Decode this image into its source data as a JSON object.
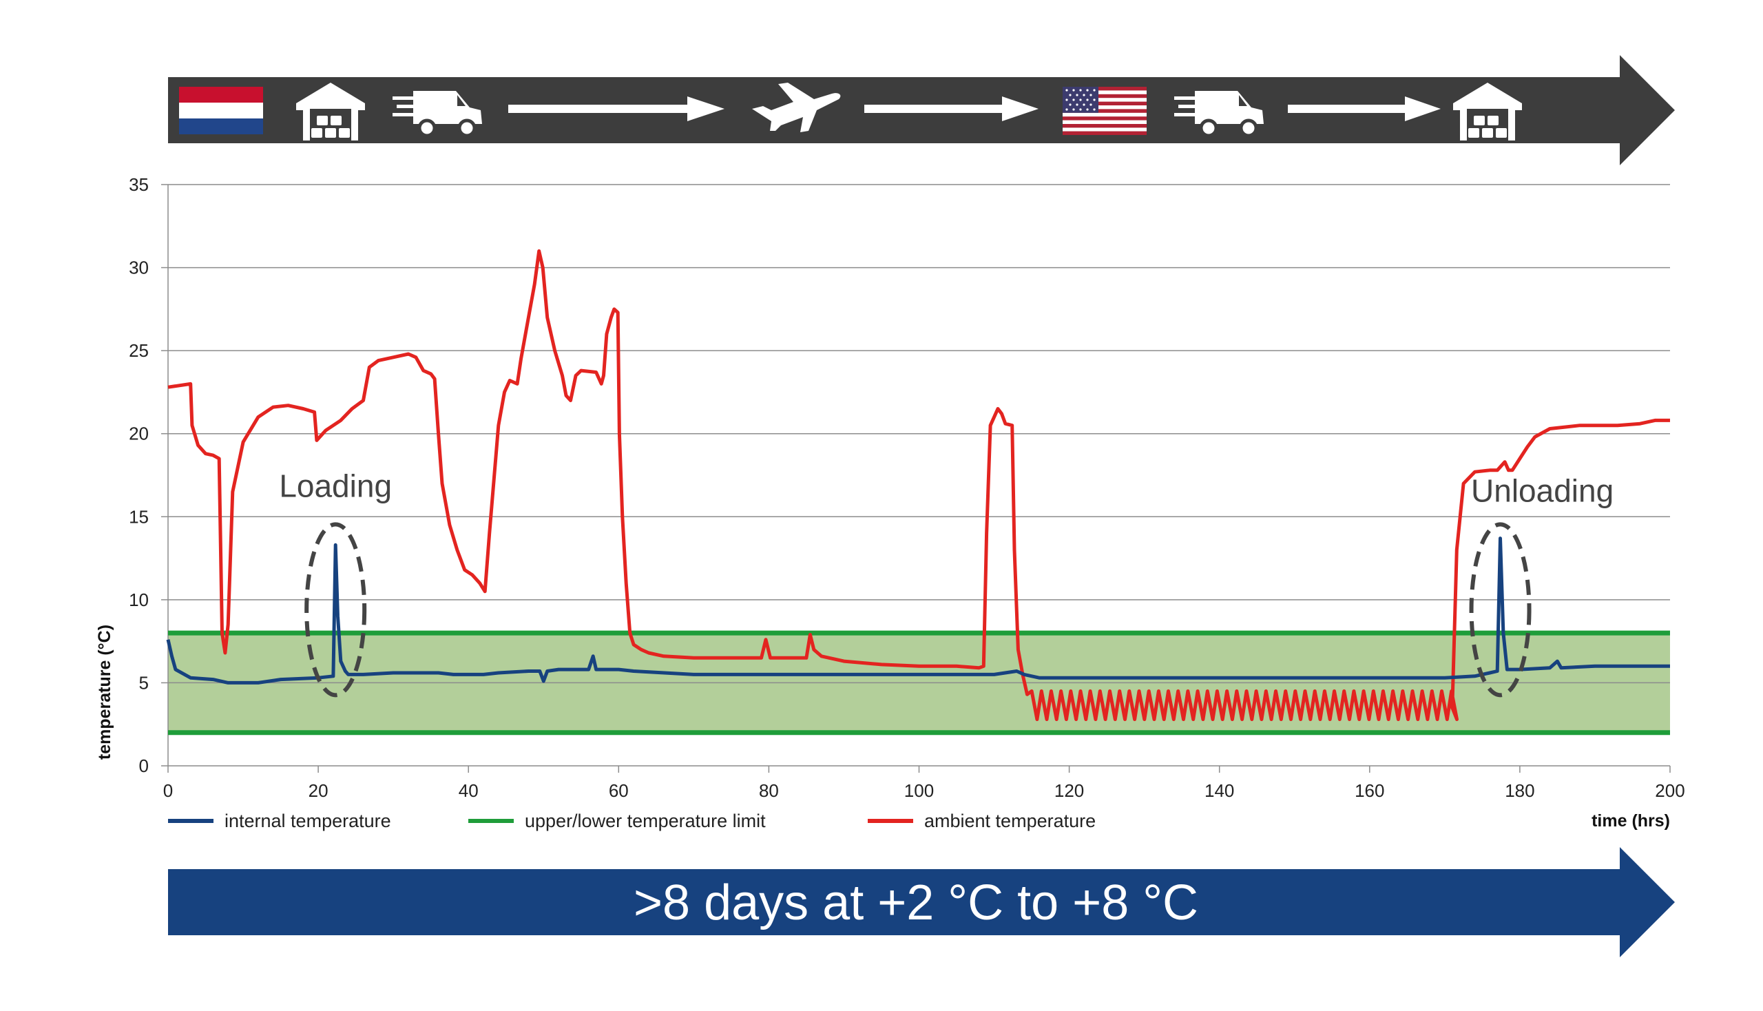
{
  "route": {
    "icons": [
      {
        "name": "netherlands-flag-icon"
      },
      {
        "name": "warehouse-icon"
      },
      {
        "name": "delivery-truck-icon"
      },
      {
        "name": "arrow-right-icon"
      },
      {
        "name": "airplane-icon"
      },
      {
        "name": "arrow-right-icon"
      },
      {
        "name": "usa-flag-icon"
      },
      {
        "name": "delivery-truck-icon"
      },
      {
        "name": "arrow-right-icon"
      },
      {
        "name": "warehouse-icon"
      }
    ],
    "colors": {
      "arrow": "#3d3d3d",
      "icon": "#ffffff"
    }
  },
  "banner": {
    "text": ">8 days at +2 °C to +8 °C",
    "color": "#17427f"
  },
  "annotations": {
    "loading": "Loading",
    "unloading": "Unloading"
  },
  "chart_data": {
    "type": "line",
    "xlabel": "time (hrs)",
    "ylabel": "temperature (°C)",
    "xlim": [
      0,
      200
    ],
    "ylim": [
      0,
      35
    ],
    "xticks": [
      0,
      20,
      40,
      60,
      80,
      100,
      120,
      140,
      160,
      180,
      200
    ],
    "yticks": [
      0,
      5,
      10,
      15,
      20,
      25,
      30,
      35
    ],
    "grid": "horizontal",
    "legend_position": "bottom",
    "band": {
      "lower": 2,
      "upper": 8,
      "fill": "#b3cf9a"
    },
    "series": [
      {
        "name": "internal temperature",
        "color": "#17427f",
        "points": [
          [
            0,
            7.6
          ],
          [
            0.5,
            6.6
          ],
          [
            1,
            5.8
          ],
          [
            3,
            5.3
          ],
          [
            6,
            5.2
          ],
          [
            8,
            5.0
          ],
          [
            12,
            5.0
          ],
          [
            15,
            5.2
          ],
          [
            20,
            5.3
          ],
          [
            22,
            5.4
          ],
          [
            22.3,
            13.3
          ],
          [
            22.6,
            9.0
          ],
          [
            23.0,
            6.3
          ],
          [
            23.6,
            5.7
          ],
          [
            24,
            5.5
          ],
          [
            26,
            5.5
          ],
          [
            30,
            5.6
          ],
          [
            36,
            5.6
          ],
          [
            38,
            5.5
          ],
          [
            40,
            5.5
          ],
          [
            42,
            5.5
          ],
          [
            44,
            5.6
          ],
          [
            48,
            5.7
          ],
          [
            49.5,
            5.7
          ],
          [
            50,
            5.1
          ],
          [
            50.5,
            5.7
          ],
          [
            52,
            5.8
          ],
          [
            56,
            5.8
          ],
          [
            56.6,
            6.6
          ],
          [
            57,
            5.8
          ],
          [
            60,
            5.8
          ],
          [
            62,
            5.7
          ],
          [
            70,
            5.5
          ],
          [
            80,
            5.5
          ],
          [
            90,
            5.5
          ],
          [
            100,
            5.5
          ],
          [
            110,
            5.5
          ],
          [
            113,
            5.7
          ],
          [
            114,
            5.5
          ],
          [
            116,
            5.3
          ],
          [
            120,
            5.3
          ],
          [
            130,
            5.3
          ],
          [
            140,
            5.3
          ],
          [
            150,
            5.3
          ],
          [
            160,
            5.3
          ],
          [
            170,
            5.3
          ],
          [
            174,
            5.4
          ],
          [
            176,
            5.6
          ],
          [
            177,
            5.7
          ],
          [
            177.4,
            13.7
          ],
          [
            177.8,
            8.0
          ],
          [
            178.3,
            5.8
          ],
          [
            180,
            5.8
          ],
          [
            184,
            5.9
          ],
          [
            185,
            6.3
          ],
          [
            185.5,
            5.9
          ],
          [
            190,
            6.0
          ],
          [
            200,
            6.0
          ]
        ]
      },
      {
        "name": "upper/lower temperature limit",
        "color": "#1f9d3a",
        "points": [
          [
            0,
            8
          ],
          [
            200,
            8
          ]
        ],
        "points_lower": [
          [
            0,
            2
          ],
          [
            200,
            2
          ]
        ]
      },
      {
        "name": "ambient temperature",
        "color": "#e32420",
        "points": [
          [
            0,
            22.8
          ],
          [
            3,
            23.0
          ],
          [
            3.2,
            20.5
          ],
          [
            4,
            19.3
          ],
          [
            5,
            18.8
          ],
          [
            6,
            18.7
          ],
          [
            6.8,
            18.5
          ],
          [
            7.2,
            8.0
          ],
          [
            7.6,
            6.8
          ],
          [
            8,
            8.5
          ],
          [
            8.6,
            16.5
          ],
          [
            10,
            19.5
          ],
          [
            12,
            21.0
          ],
          [
            14,
            21.6
          ],
          [
            16,
            21.7
          ],
          [
            18,
            21.5
          ],
          [
            19.5,
            21.3
          ],
          [
            19.8,
            19.6
          ],
          [
            21,
            20.2
          ],
          [
            22,
            20.5
          ],
          [
            23,
            20.8
          ],
          [
            24.5,
            21.5
          ],
          [
            26,
            22.0
          ],
          [
            26.8,
            24.0
          ],
          [
            28,
            24.4
          ],
          [
            30,
            24.6
          ],
          [
            32,
            24.8
          ],
          [
            33,
            24.6
          ],
          [
            34,
            23.8
          ],
          [
            35,
            23.6
          ],
          [
            35.5,
            23.3
          ],
          [
            36,
            20.0
          ],
          [
            36.5,
            17.0
          ],
          [
            37.5,
            14.5
          ],
          [
            38.5,
            13.0
          ],
          [
            39.5,
            11.8
          ],
          [
            40.5,
            11.5
          ],
          [
            41.5,
            11.0
          ],
          [
            42.2,
            10.5
          ],
          [
            42.8,
            14.0
          ],
          [
            44,
            20.5
          ],
          [
            44.8,
            22.5
          ],
          [
            45.5,
            23.2
          ],
          [
            46.5,
            23.0
          ],
          [
            47,
            24.5
          ],
          [
            48,
            27.0
          ],
          [
            48.8,
            29.0
          ],
          [
            49.4,
            31.0
          ],
          [
            49.9,
            30.0
          ],
          [
            50.5,
            27.0
          ],
          [
            51.5,
            25.0
          ],
          [
            52.5,
            23.5
          ],
          [
            53,
            22.3
          ],
          [
            53.6,
            22.0
          ],
          [
            54.3,
            23.5
          ],
          [
            55,
            23.8
          ],
          [
            57,
            23.7
          ],
          [
            57.7,
            23.0
          ],
          [
            58,
            23.5
          ],
          [
            58.4,
            26.0
          ],
          [
            59,
            27.0
          ],
          [
            59.4,
            27.5
          ],
          [
            59.9,
            27.3
          ],
          [
            60.1,
            20.0
          ],
          [
            60.5,
            15.0
          ],
          [
            61,
            11.0
          ],
          [
            61.5,
            8.0
          ],
          [
            62,
            7.3
          ],
          [
            63,
            7.0
          ],
          [
            64,
            6.8
          ],
          [
            66,
            6.6
          ],
          [
            70,
            6.5
          ],
          [
            75,
            6.5
          ],
          [
            79,
            6.5
          ],
          [
            79.6,
            7.6
          ],
          [
            80.2,
            6.5
          ],
          [
            85,
            6.5
          ],
          [
            85.5,
            7.9
          ],
          [
            86,
            7.0
          ],
          [
            87,
            6.6
          ],
          [
            90,
            6.3
          ],
          [
            95,
            6.1
          ],
          [
            100,
            6.0
          ],
          [
            105,
            6.0
          ],
          [
            108,
            5.9
          ],
          [
            108.6,
            6.0
          ],
          [
            109,
            14.0
          ],
          [
            109.5,
            20.5
          ],
          [
            110.5,
            21.5
          ],
          [
            111,
            21.2
          ],
          [
            111.5,
            20.6
          ],
          [
            112.4,
            20.5
          ],
          [
            112.7,
            13.0
          ],
          [
            113.2,
            7.0
          ],
          [
            113.8,
            5.5
          ],
          [
            114.4,
            4.3
          ],
          [
            115.5,
            4.4
          ],
          [
            200,
            4.4
          ]
        ]
      }
    ],
    "ambient_oscillation": {
      "x_start": 115,
      "x_end": 171,
      "period_hrs": 1.3,
      "low": 2.8,
      "high": 4.5,
      "then": [
        [
          171,
          3.5
        ],
        [
          171.6,
          13.0
        ],
        [
          172.5,
          17.0
        ],
        [
          174,
          17.7
        ],
        [
          176,
          17.8
        ],
        [
          177,
          17.8
        ],
        [
          178,
          18.3
        ],
        [
          178.5,
          17.8
        ],
        [
          179,
          17.8
        ],
        [
          180,
          18.5
        ],
        [
          181,
          19.2
        ],
        [
          182,
          19.8
        ],
        [
          184,
          20.3
        ],
        [
          186,
          20.4
        ],
        [
          188,
          20.5
        ],
        [
          193,
          20.5
        ],
        [
          196,
          20.6
        ],
        [
          198,
          20.8
        ],
        [
          200,
          20.8
        ]
      ]
    },
    "legend": [
      {
        "label": "internal temperature",
        "color": "#17427f"
      },
      {
        "label": "upper/lower temperature limit",
        "color": "#1f9d3a"
      },
      {
        "label": "ambient temperature",
        "color": "#e32420"
      }
    ]
  }
}
